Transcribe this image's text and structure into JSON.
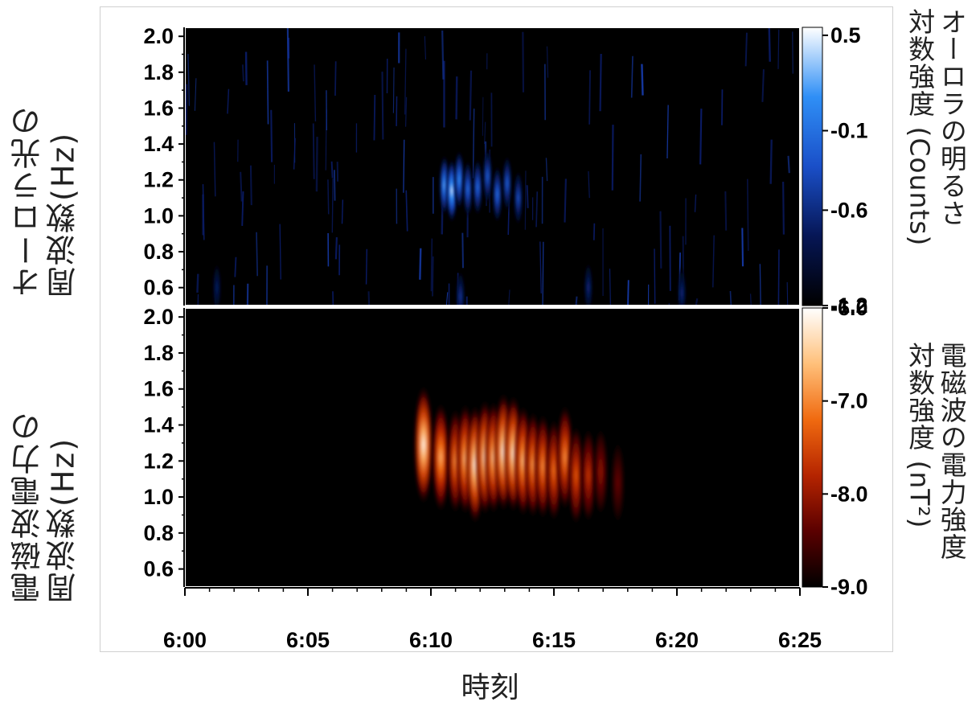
{
  "chart_data": [
    {
      "type": "heatmap",
      "panel": "top",
      "ylabel_lines": [
        "オーロラ光の",
        "周波数(Hz)"
      ],
      "colorbar_label_lines": [
        "オーロラの明るさ",
        "対数強度 (Counts)"
      ],
      "y_ticks": [
        "2.0",
        "1.8",
        "1.6",
        "1.4",
        "1.2",
        "1.0",
        "0.8",
        "0.6"
      ],
      "ylim": [
        0.5,
        2.05
      ],
      "colorbar_ticks": [
        "0.5",
        "-0.1",
        "-0.6",
        "-1.2"
      ],
      "colorbar_range": [
        -1.2,
        0.55
      ],
      "colormap": [
        "#000000",
        "#061655",
        "#1a4fc8",
        "#2f8ff6",
        "#ffffff"
      ],
      "blobs": [
        {
          "t": 10.55,
          "f": 1.17,
          "value": 0.2
        },
        {
          "t": 10.85,
          "f": 1.14,
          "value": 0.5
        },
        {
          "t": 11.15,
          "f": 1.2,
          "value": 0.1
        },
        {
          "t": 11.5,
          "f": 1.15,
          "value": -0.1
        },
        {
          "t": 11.9,
          "f": 1.16,
          "value": -0.1
        },
        {
          "t": 12.3,
          "f": 1.22,
          "value": -0.2
        },
        {
          "t": 12.7,
          "f": 1.12,
          "value": -0.1
        },
        {
          "t": 13.1,
          "f": 1.18,
          "value": -0.2
        },
        {
          "t": 13.55,
          "f": 1.1,
          "value": -0.3
        },
        {
          "t": 11.2,
          "f": 0.55,
          "value": -0.5
        },
        {
          "t": 16.4,
          "f": 0.6,
          "value": -0.6
        },
        {
          "t": 20.2,
          "f": 0.57,
          "value": -0.6
        },
        {
          "t": 1.3,
          "f": 0.6,
          "value": -0.7
        }
      ]
    },
    {
      "type": "heatmap",
      "panel": "bottom",
      "ylabel_lines": [
        "電磁波電力の",
        "周波数(Hz)"
      ],
      "colorbar_label_lines": [
        "電磁波の電力強度",
        "対数強度 (nT²)"
      ],
      "y_ticks": [
        "2.0",
        "1.8",
        "1.6",
        "1.4",
        "1.2",
        "1.0",
        "0.8",
        "0.6"
      ],
      "ylim": [
        0.5,
        2.05
      ],
      "colorbar_ticks": [
        "-6.0",
        "-7.0",
        "-8.0",
        "-9.0"
      ],
      "colorbar_range": [
        -9.0,
        -6.0
      ],
      "colormap": [
        "#000000",
        "#5a0000",
        "#b52400",
        "#f06a10",
        "#ffc07a",
        "#ffffff"
      ],
      "blobs": [
        {
          "t": 9.7,
          "f": 1.29,
          "value": -6.0
        },
        {
          "t": 10.4,
          "f": 1.22,
          "value": -6.6
        },
        {
          "t": 11.0,
          "f": 1.2,
          "value": -6.9
        },
        {
          "t": 11.4,
          "f": 1.21,
          "value": -6.5
        },
        {
          "t": 11.8,
          "f": 1.18,
          "value": -6.0
        },
        {
          "t": 12.2,
          "f": 1.22,
          "value": -6.2
        },
        {
          "t": 12.55,
          "f": 1.22,
          "value": -6.4
        },
        {
          "t": 12.95,
          "f": 1.25,
          "value": -6.0
        },
        {
          "t": 13.35,
          "f": 1.24,
          "value": -6.1
        },
        {
          "t": 13.75,
          "f": 1.2,
          "value": -6.5
        },
        {
          "t": 14.15,
          "f": 1.18,
          "value": -6.8
        },
        {
          "t": 14.55,
          "f": 1.17,
          "value": -6.9
        },
        {
          "t": 15.0,
          "f": 1.15,
          "value": -7.1
        },
        {
          "t": 15.45,
          "f": 1.22,
          "value": -6.9
        },
        {
          "t": 15.9,
          "f": 1.12,
          "value": -7.3
        },
        {
          "t": 16.4,
          "f": 1.12,
          "value": -7.6
        },
        {
          "t": 16.9,
          "f": 1.14,
          "value": -8.0
        },
        {
          "t": 17.6,
          "f": 1.08,
          "value": -8.3
        }
      ]
    }
  ],
  "x_axis": {
    "title": "時刻",
    "tick_labels": [
      "6:00",
      "6:05",
      "6:10",
      "6:15",
      "6:20",
      "6:25"
    ],
    "xlim_minutes_after_6_00": [
      0,
      25
    ]
  }
}
